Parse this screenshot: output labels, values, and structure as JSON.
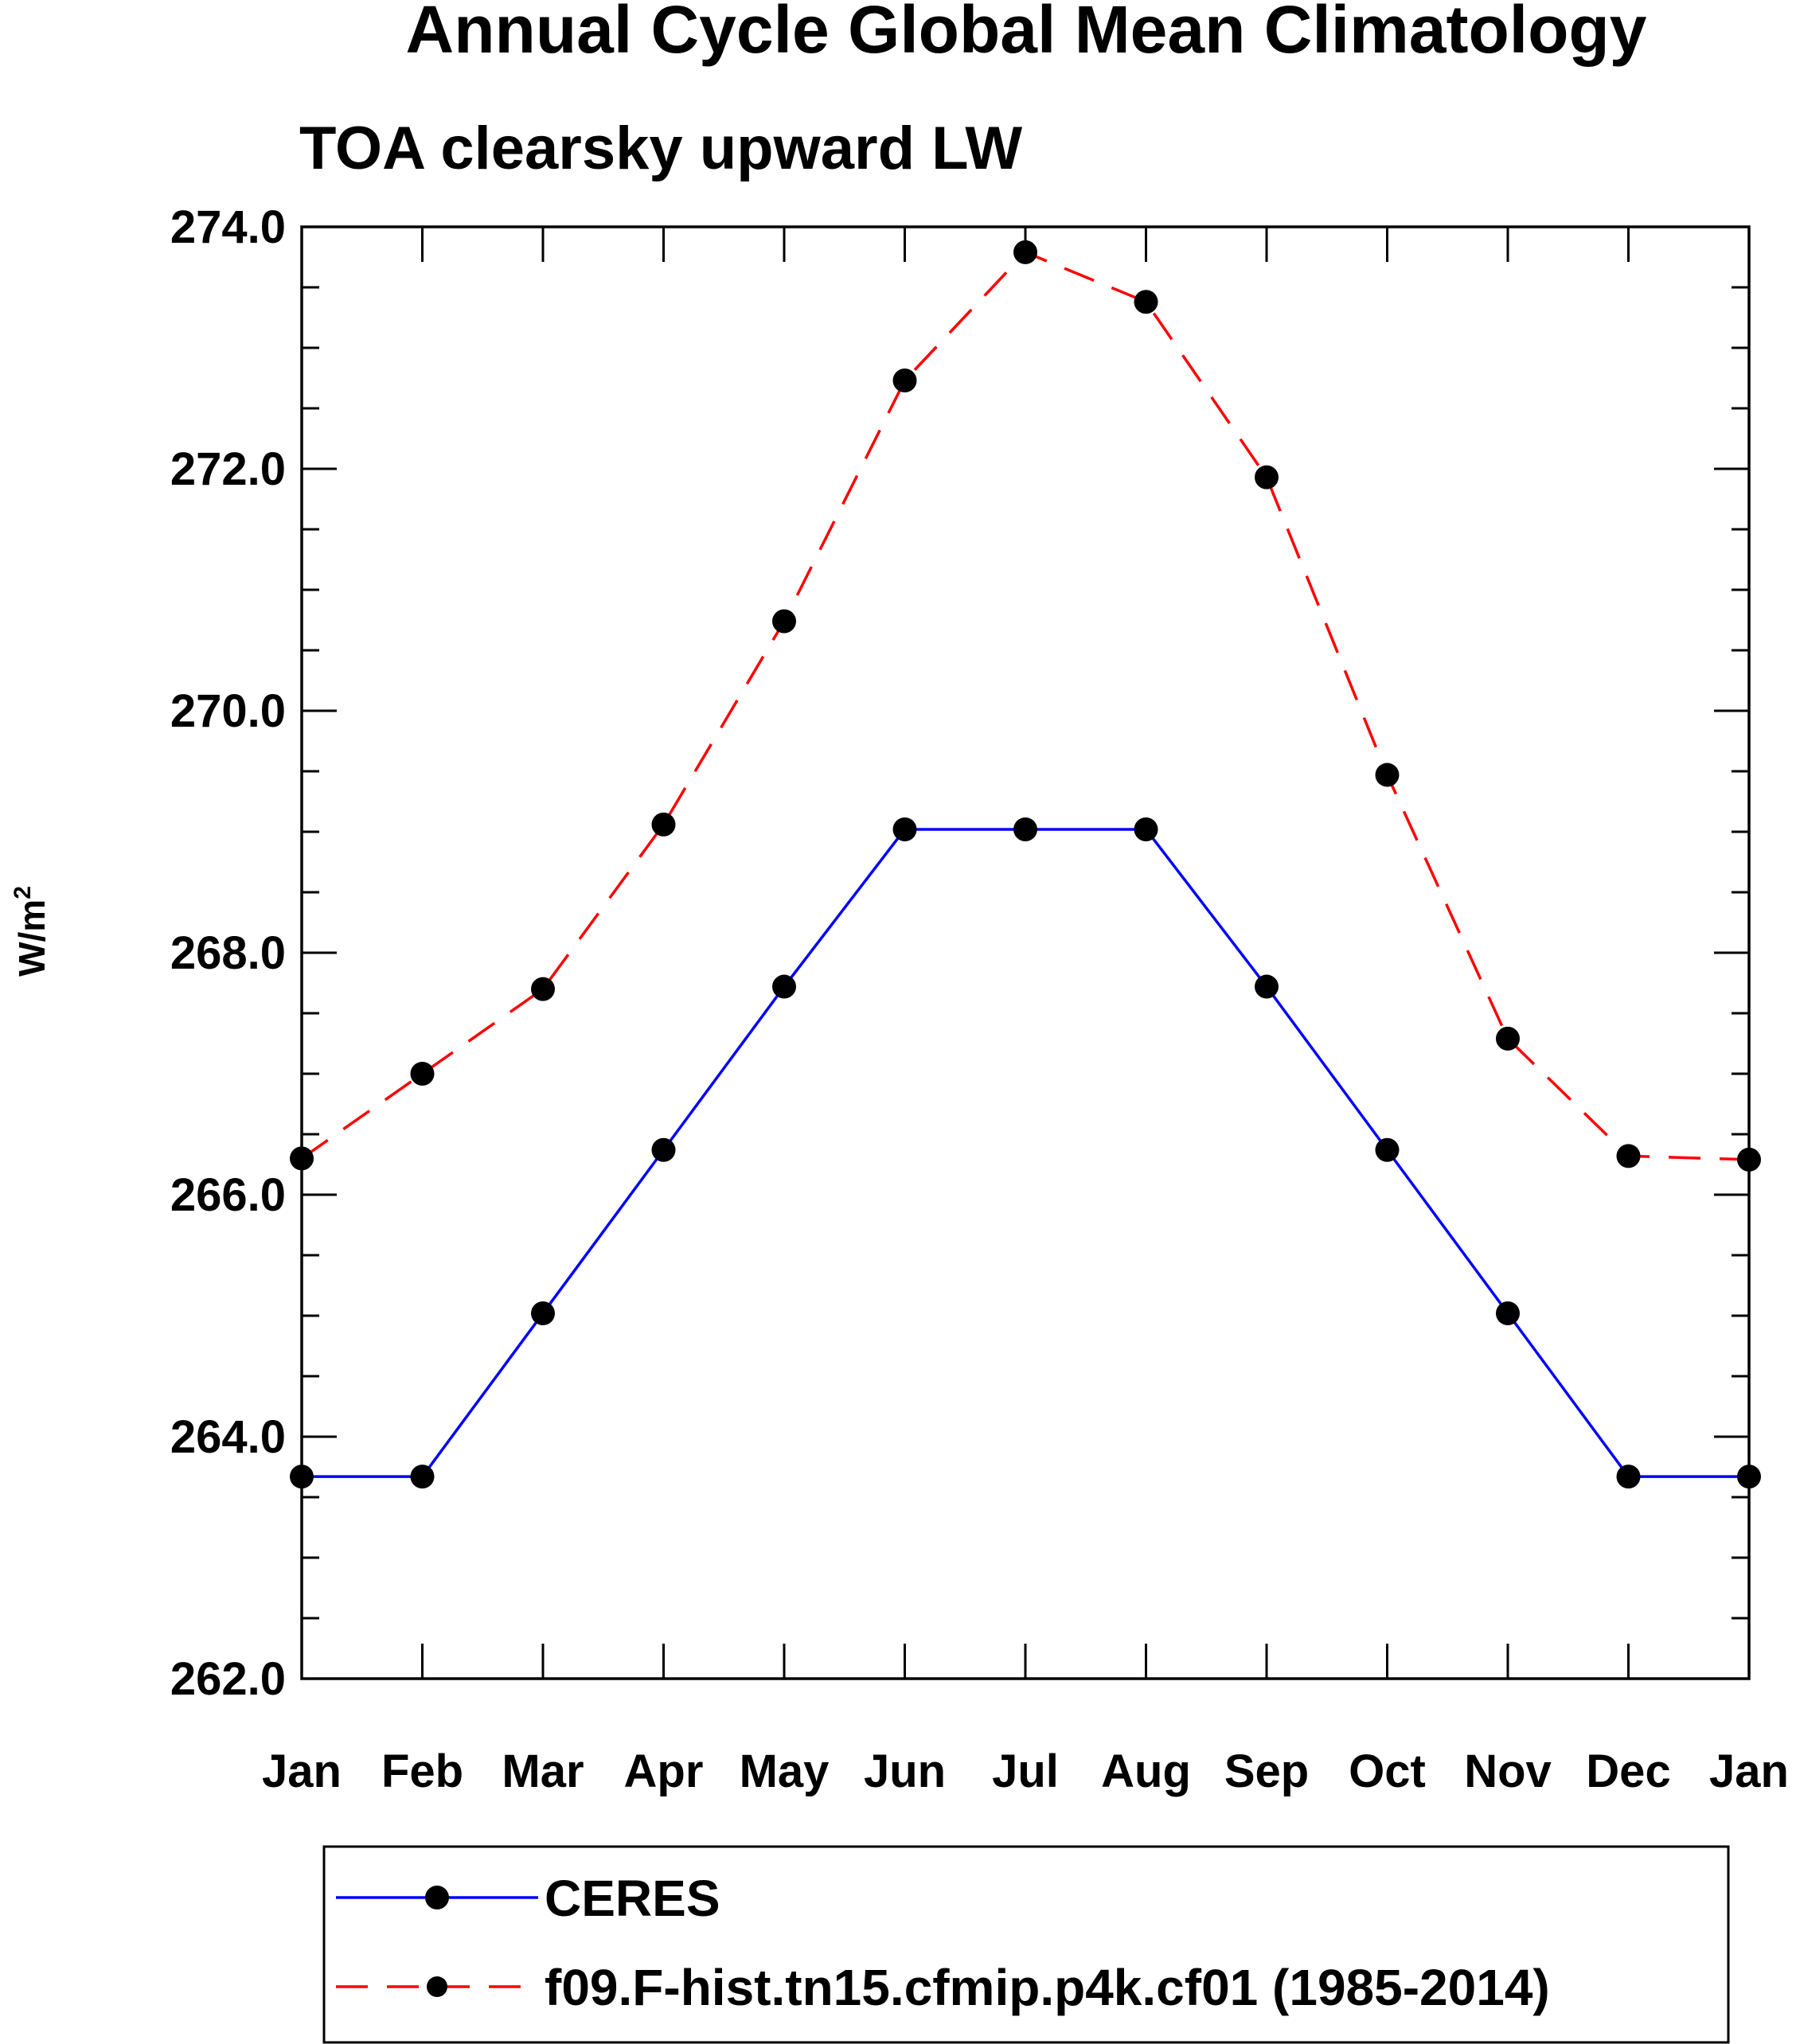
{
  "chart_data": {
    "type": "line",
    "title": "Annual Cycle Global Mean Climatology",
    "subtitle": "TOA clearsky upward LW",
    "xlabel": "",
    "ylabel_main": "W/m",
    "ylabel_sup": "2",
    "categories": [
      "Jan",
      "Feb",
      "Mar",
      "Apr",
      "May",
      "Jun",
      "Jul",
      "Aug",
      "Sep",
      "Oct",
      "Nov",
      "Dec",
      "Jan"
    ],
    "ylim": [
      262.0,
      274.0
    ],
    "yticks": [
      262.0,
      264.0,
      266.0,
      268.0,
      270.0,
      272.0,
      274.0
    ],
    "ytick_labels": [
      "262.0",
      "264.0",
      "266.0",
      "268.0",
      "270.0",
      "272.0",
      "274.0"
    ],
    "y_minor_step": 0.5,
    "grid": false,
    "legend_position": "bottom",
    "series": [
      {
        "name": "CERES",
        "color": "#0000ff",
        "dash": "solid",
        "marker": "filled-circle",
        "values": [
          263.67,
          263.67,
          265.02,
          266.37,
          267.72,
          269.02,
          269.02,
          269.02,
          267.72,
          266.37,
          265.02,
          263.67,
          263.67
        ]
      },
      {
        "name": "f09.F-hist.tn15.cfmip.p4k.cf01 (1985-2014)",
        "color": "#ff0000",
        "dash": "dashed",
        "marker": "filled-circle",
        "values": [
          266.3,
          267.0,
          267.7,
          269.06,
          270.74,
          272.73,
          273.79,
          273.38,
          271.93,
          269.47,
          267.29,
          266.32,
          266.29
        ]
      }
    ]
  }
}
